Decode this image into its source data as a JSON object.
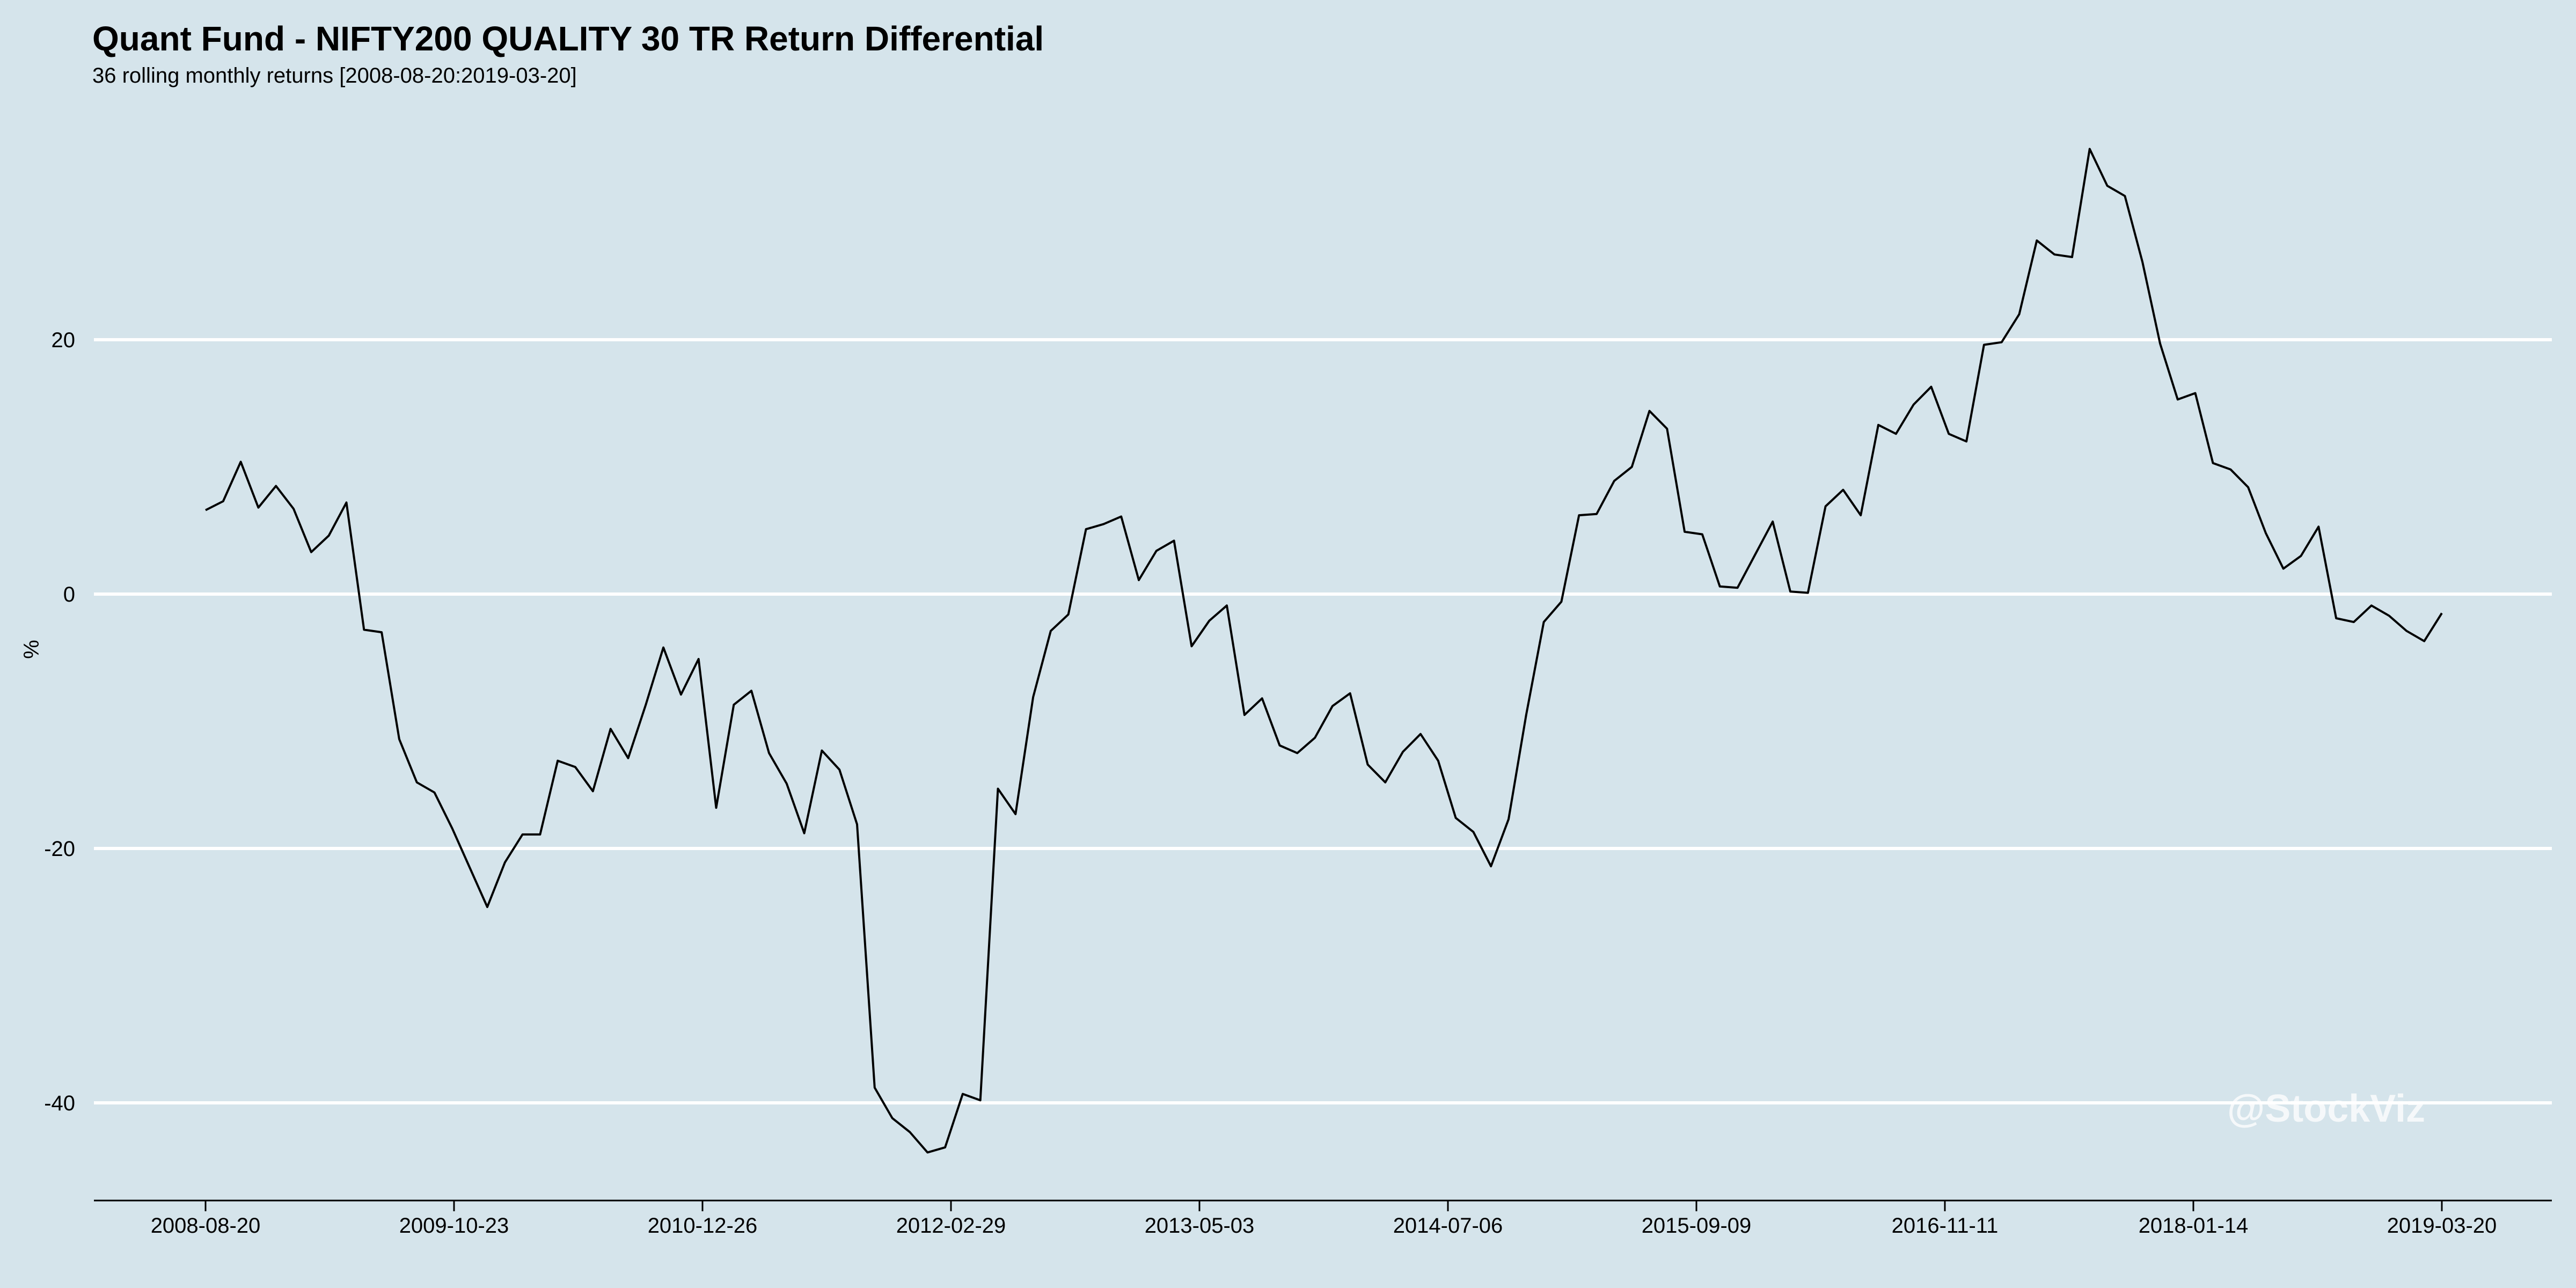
{
  "chart_data": {
    "type": "line",
    "title": "Quant Fund - NIFTY200 QUALITY 30 TR Return Differential",
    "subtitle": "36 rolling monthly returns [2008-08-20:2019-03-20]",
    "xlabel": "",
    "ylabel": "%",
    "ylim": [
      -48,
      40
    ],
    "yticks": [
      -40,
      -20,
      0,
      20
    ],
    "xticks": [
      "2008-08-20",
      "2009-10-23",
      "2010-12-26",
      "2012-02-29",
      "2013-05-03",
      "2014-07-06",
      "2015-09-09",
      "2016-11-11",
      "2018-01-14",
      "2019-03-20"
    ],
    "grid": "horizontal",
    "watermark": "@StockViz",
    "series": [
      {
        "values": [
          6.6,
          7.3,
          10.4,
          6.8,
          8.5,
          6.7,
          3.3,
          4.6,
          7.2,
          -2.8,
          -3.0,
          -11.4,
          -14.8,
          -15.6,
          -18.4,
          -21.5,
          -24.6,
          -21.1,
          -18.9,
          -18.9,
          -13.1,
          -13.6,
          -15.5,
          -10.6,
          -12.9,
          -8.7,
          -4.2,
          -7.9,
          -5.1,
          -16.8,
          -8.7,
          -7.6,
          -12.5,
          -14.9,
          -18.8,
          -12.3,
          -13.8,
          -18.1,
          -38.8,
          -41.2,
          -42.3,
          -43.9,
          -43.5,
          -39.3,
          -39.8,
          -15.3,
          -17.3,
          -8.1,
          -2.9,
          -1.6,
          5.1,
          5.5,
          6.1,
          1.1,
          3.4,
          4.2,
          -4.1,
          -2.1,
          -0.9,
          -9.5,
          -8.2,
          -11.9,
          -12.5,
          -11.3,
          -8.8,
          -7.8,
          -13.4,
          -14.8,
          -12.4,
          -11.0,
          -13.1,
          -17.6,
          -18.7,
          -21.4,
          -17.7,
          -9.5,
          -2.2,
          -0.6,
          6.2,
          6.3,
          8.9,
          10.0,
          14.4,
          13.0,
          4.9,
          4.7,
          0.6,
          0.5,
          3.1,
          5.7,
          0.2,
          0.1,
          6.9,
          8.2,
          6.2,
          13.3,
          12.6,
          14.9,
          16.3,
          12.6,
          12.0,
          19.6,
          19.8,
          22.0,
          27.8,
          26.7,
          26.5,
          35.0,
          32.1,
          31.3,
          26.1,
          19.7,
          15.3,
          15.8,
          10.3,
          9.8,
          8.4,
          4.8,
          2.0,
          3.0,
          5.3,
          -1.9,
          -2.2,
          -0.9,
          -1.7,
          -2.9,
          -3.7,
          -1.5
        ]
      }
    ]
  }
}
